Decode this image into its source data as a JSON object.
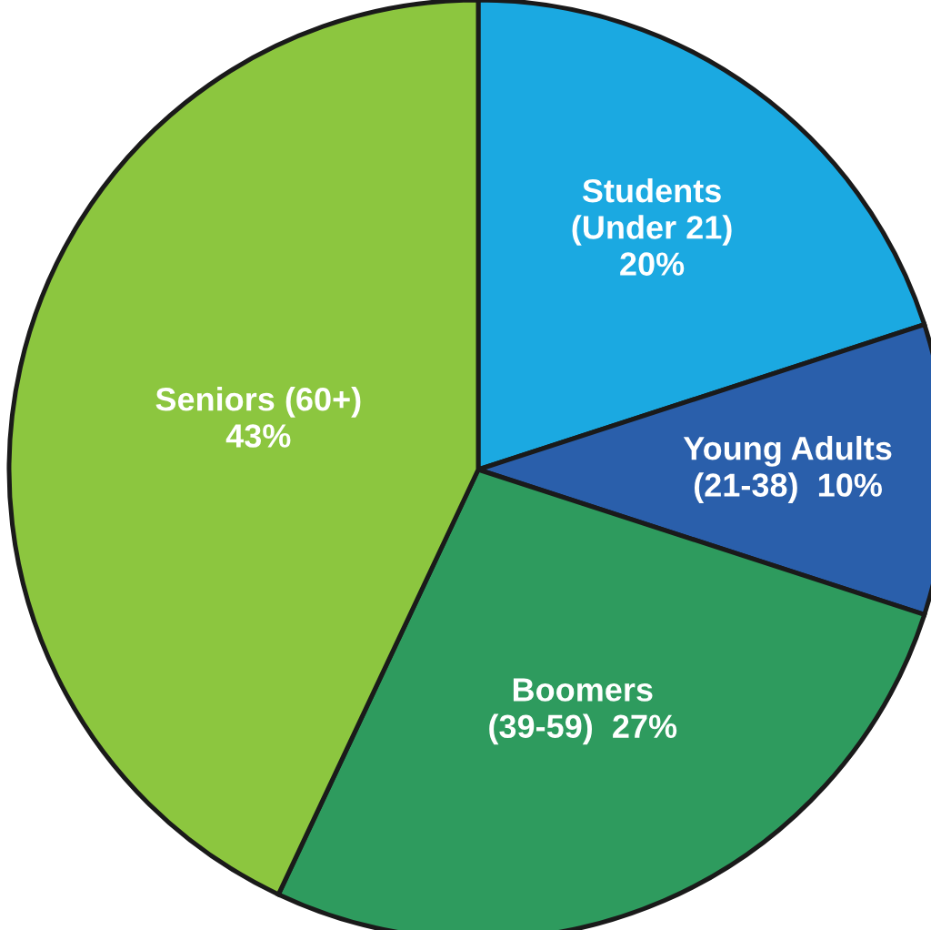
{
  "chart_data": {
    "type": "pie",
    "categories": [
      "Students\n(Under 21)",
      "Young Adults\n(21-38)",
      "Boomers\n(39-59)",
      "Seniors (60+)"
    ],
    "values": [
      20,
      10,
      27,
      43
    ],
    "colors": [
      "#1ba9e1",
      "#2a5fab",
      "#2e9b5e",
      "#8cc63f"
    ],
    "value_labels": [
      "20%",
      "10%",
      "27%",
      "43%"
    ]
  }
}
